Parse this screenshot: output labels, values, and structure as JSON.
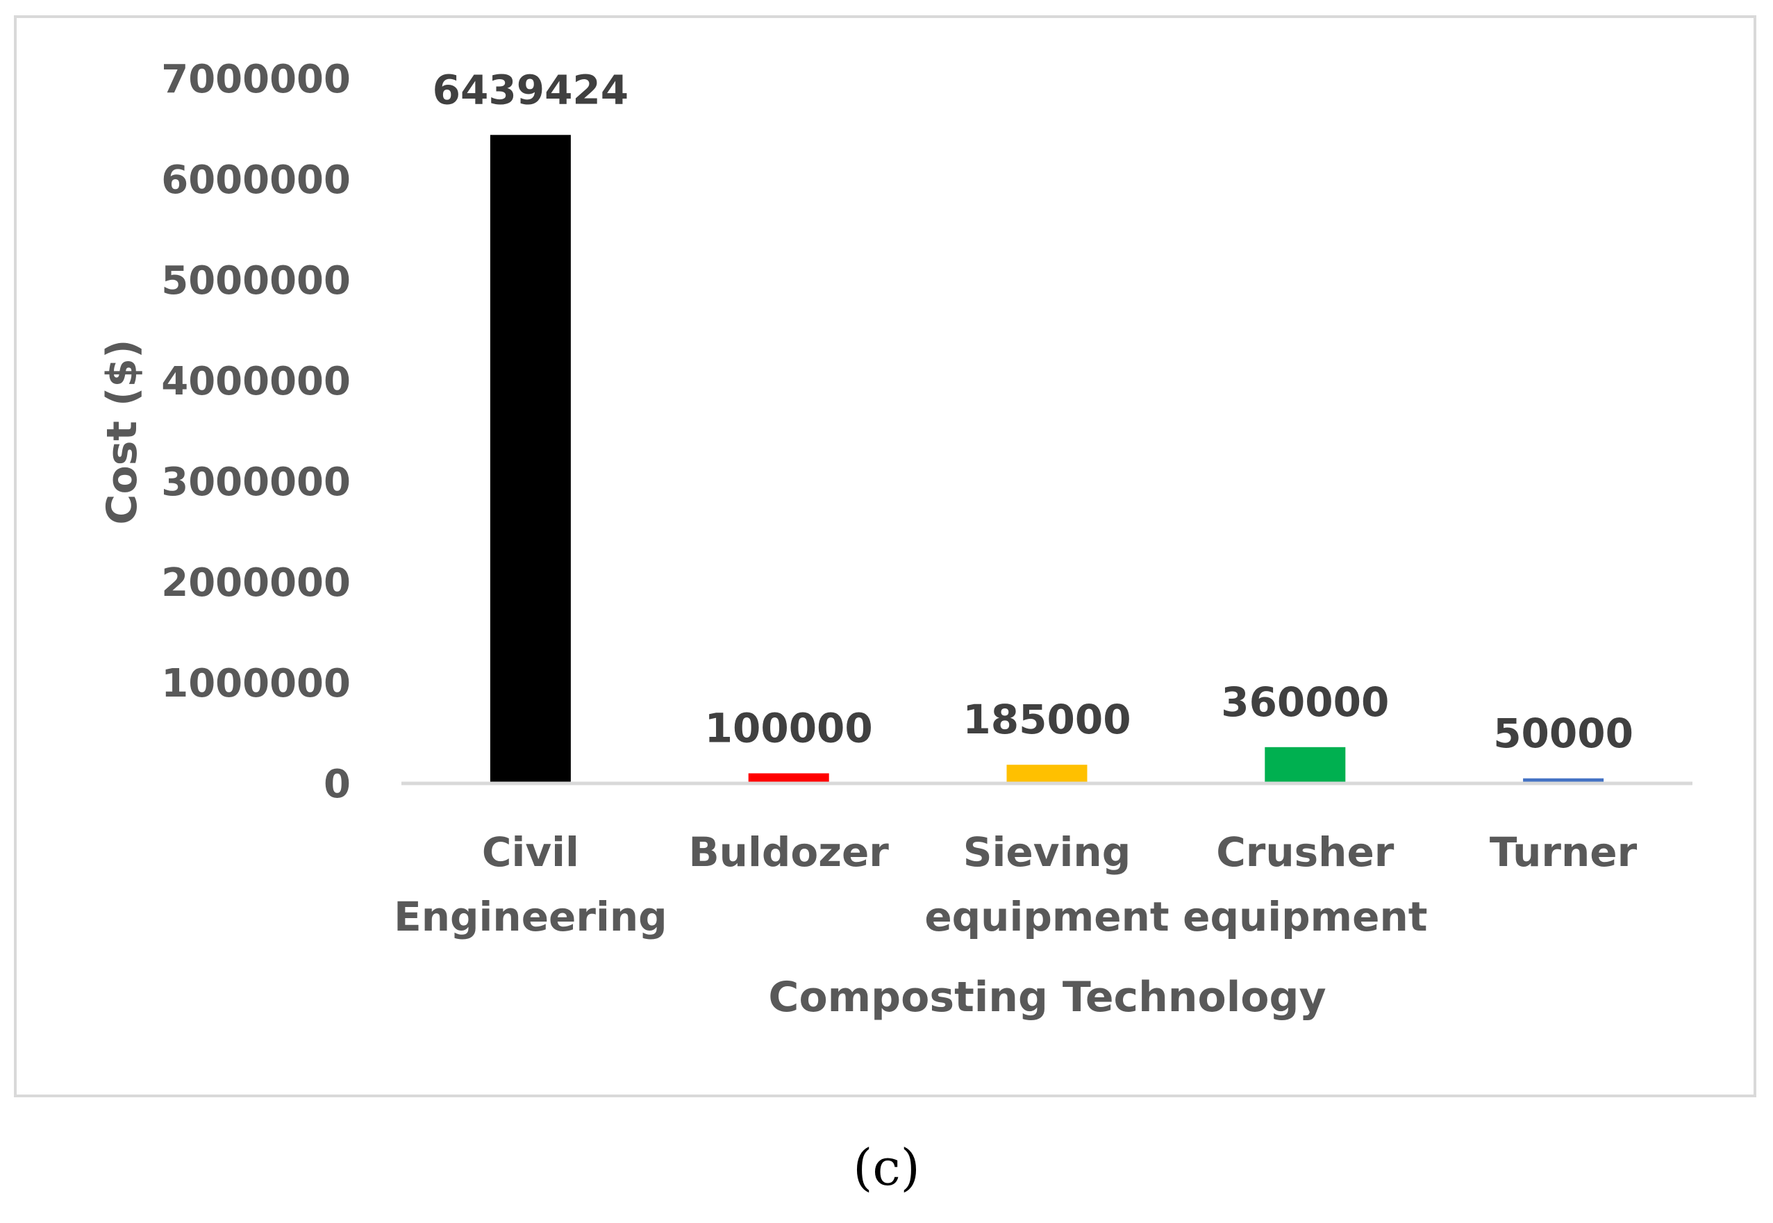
{
  "chart_data": {
    "type": "bar",
    "categories": [
      [
        "Civil",
        "Engineering"
      ],
      [
        "Buldozer"
      ],
      [
        "Sieving",
        "equipment"
      ],
      [
        "Crusher",
        "equipment"
      ],
      [
        "Turner"
      ]
    ],
    "values": [
      6439424,
      100000,
      185000,
      360000,
      50000
    ],
    "data_labels": [
      "6439424",
      "100000",
      "185000",
      "360000",
      "50000"
    ],
    "colors": [
      "#000000",
      "#ff0000",
      "#ffc000",
      "#00b050",
      "#4472c4"
    ],
    "xlabel": "Composting Technology",
    "ylabel": "Cost ($)",
    "ylim": [
      0,
      7000000
    ],
    "yticks": [
      "0",
      "1000000",
      "2000000",
      "3000000",
      "4000000",
      "5000000",
      "6000000",
      "7000000"
    ],
    "grid": false,
    "legend": "none"
  },
  "panel_label": "(c)"
}
